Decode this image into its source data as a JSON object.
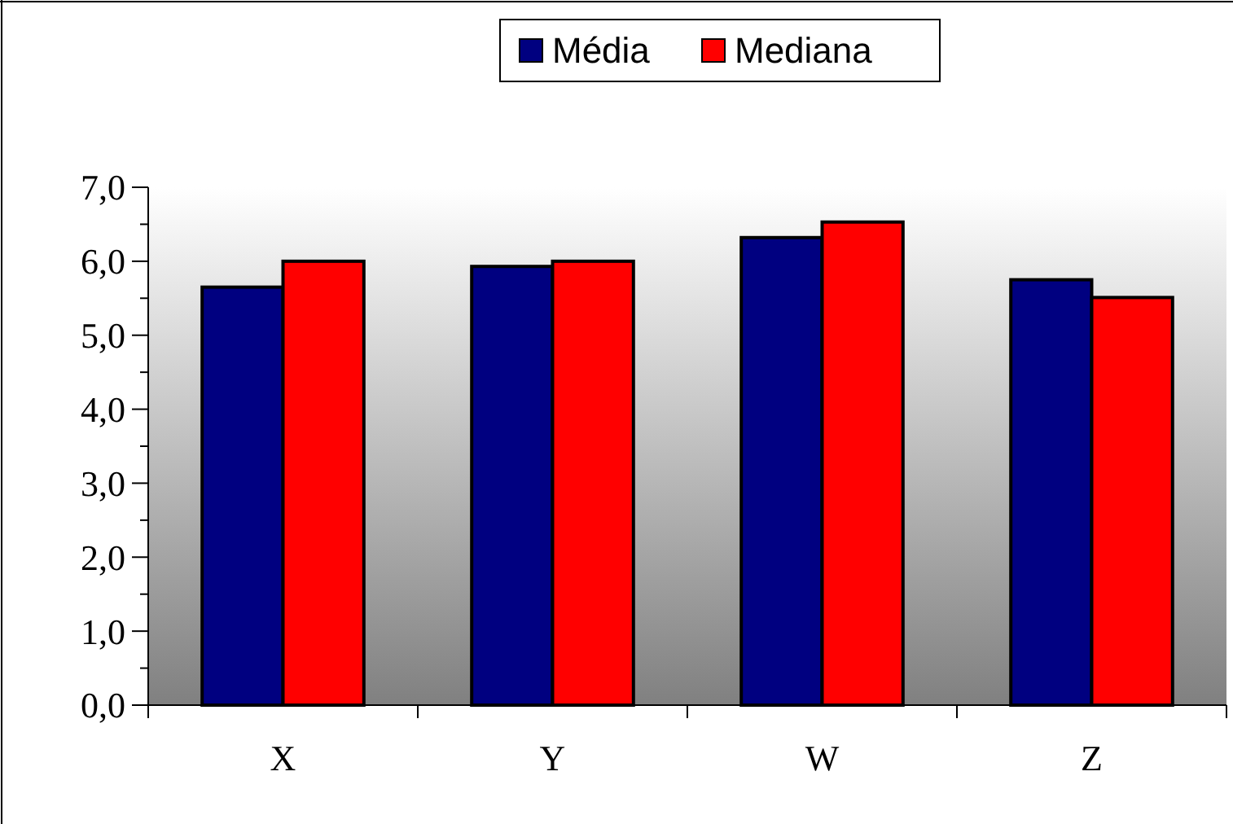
{
  "chart_data": {
    "type": "bar",
    "categories": [
      "X",
      "Y",
      "W",
      "Z"
    ],
    "series": [
      {
        "name": "Média",
        "color": "#000080",
        "values": [
          5.65,
          5.93,
          6.32,
          5.75
        ]
      },
      {
        "name": "Mediana",
        "color": "#ff0000",
        "values": [
          6.0,
          6.0,
          6.53,
          5.51
        ]
      }
    ],
    "ylim": [
      0,
      7
    ],
    "yticks": [
      {
        "value": 0,
        "label": "0,0"
      },
      {
        "value": 0.5,
        "label": null
      },
      {
        "value": 1,
        "label": "1,0"
      },
      {
        "value": 1.5,
        "label": null
      },
      {
        "value": 2,
        "label": "2,0"
      },
      {
        "value": 2.5,
        "label": null
      },
      {
        "value": 3,
        "label": "3,0"
      },
      {
        "value": 3.5,
        "label": null
      },
      {
        "value": 4,
        "label": "4,0"
      },
      {
        "value": 4.5,
        "label": null
      },
      {
        "value": 5,
        "label": "5,0"
      },
      {
        "value": 5.5,
        "label": null
      },
      {
        "value": 6,
        "label": "6,0"
      },
      {
        "value": 6.5,
        "label": null
      },
      {
        "value": 7,
        "label": "7,0"
      }
    ],
    "grid": false,
    "legend": "top"
  }
}
